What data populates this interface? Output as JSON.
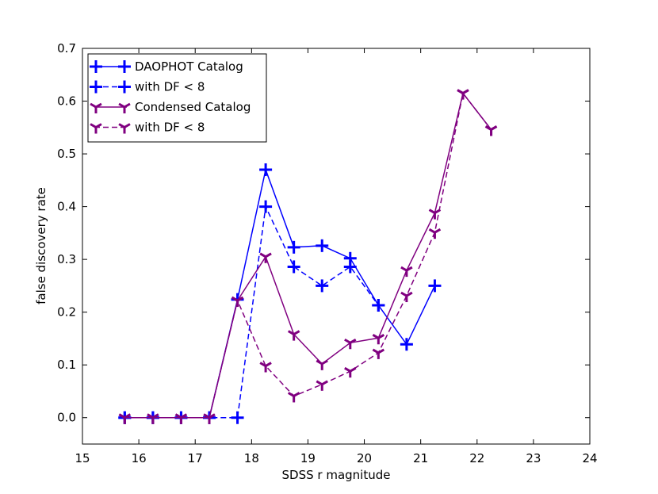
{
  "chart_data": {
    "type": "line",
    "title": "",
    "xlabel": "SDSS r magnitude",
    "ylabel": "false discovery rate",
    "xlim": [
      15,
      24
    ],
    "ylim": [
      -0.05,
      0.7
    ],
    "xticks": [
      15,
      16,
      17,
      18,
      19,
      20,
      21,
      22,
      23,
      24
    ],
    "yticks": [
      0.0,
      0.1,
      0.2,
      0.3,
      0.4,
      0.5,
      0.6,
      0.7
    ],
    "xtick_labels": [
      "15",
      "16",
      "17",
      "18",
      "19",
      "20",
      "21",
      "22",
      "23",
      "24"
    ],
    "ytick_labels": [
      "0.0",
      "0.1",
      "0.2",
      "0.3",
      "0.4",
      "0.5",
      "0.6",
      "0.7"
    ],
    "grid": false,
    "legend_position": "top-left",
    "series": [
      {
        "name": "DAOPHOT Catalog",
        "color": "#0000ff",
        "linestyle": "solid",
        "marker": "plus",
        "x": [
          15.75,
          16.25,
          16.75,
          17.25,
          17.75,
          18.25,
          18.75,
          19.25,
          19.75,
          20.25,
          20.75,
          21.25
        ],
        "y": [
          0.0,
          0.0,
          0.0,
          0.0,
          0.224,
          0.47,
          0.323,
          0.326,
          0.302,
          0.213,
          0.139,
          0.25
        ]
      },
      {
        "name": "with DF < 8",
        "color": "#0000ff",
        "linestyle": "dashed",
        "marker": "plus",
        "x": [
          15.75,
          16.25,
          16.75,
          17.25,
          17.75,
          18.25,
          18.75,
          19.25,
          19.75,
          20.25
        ],
        "y": [
          0.0,
          0.0,
          0.0,
          0.0,
          0.0,
          0.4,
          0.286,
          0.25,
          0.286,
          0.213
        ]
      },
      {
        "name": "Condensed Catalog",
        "color": "#800080",
        "linestyle": "solid",
        "marker": "tri_down",
        "x": [
          15.75,
          16.25,
          16.75,
          17.25,
          17.75,
          18.25,
          18.75,
          19.25,
          19.75,
          20.25,
          20.75,
          21.25,
          21.75,
          22.25
        ],
        "y": [
          0.0,
          0.0,
          0.0,
          0.0,
          0.222,
          0.305,
          0.158,
          0.102,
          0.142,
          0.151,
          0.279,
          0.388,
          0.615,
          0.546
        ]
      },
      {
        "name": "with DF < 8",
        "color": "#800080",
        "linestyle": "dashed",
        "marker": "tri_down",
        "x": [
          15.75,
          16.25,
          16.75,
          17.25,
          17.75,
          18.25,
          18.75,
          19.25,
          19.75,
          20.25,
          20.75,
          21.25,
          21.75,
          22.25
        ],
        "y": [
          0.0,
          0.0,
          0.0,
          0.0,
          0.222,
          0.098,
          0.041,
          0.063,
          0.088,
          0.123,
          0.231,
          0.351,
          0.615,
          0.546
        ]
      }
    ]
  }
}
